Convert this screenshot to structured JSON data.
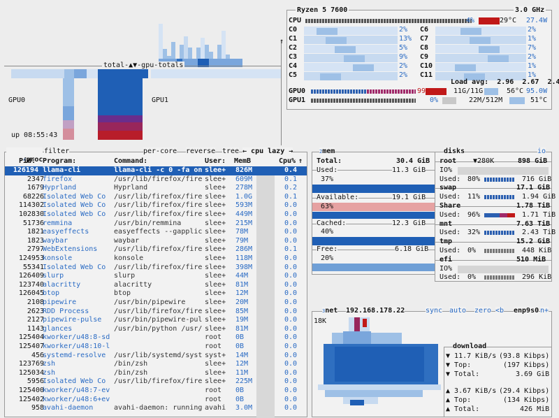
{
  "colors": {
    "accent": "#2a6bc4",
    "dark_blue": "#1f5fb5",
    "light_blue": "#9ec0e6",
    "red": "#c01818",
    "pink": "#e6a2a2"
  },
  "gpu_panel": {
    "title": "total-▲▼-gpu-totals",
    "gpu0": "GPU0",
    "gpu1": "GPU1",
    "uptime": "up 08:55:43"
  },
  "cpu": {
    "model": "Ryzen 5 7600",
    "freq": "3.0 GHz",
    "label": "CPU",
    "total_pct": "4%",
    "temp": "29°C",
    "power": "27.4W",
    "cores": [
      {
        "name": "C0",
        "pct": "2%"
      },
      {
        "name": "C1",
        "pct": "13%"
      },
      {
        "name": "C2",
        "pct": "5%"
      },
      {
        "name": "C3",
        "pct": "9%"
      },
      {
        "name": "C4",
        "pct": "2%"
      },
      {
        "name": "C5",
        "pct": "2%"
      },
      {
        "name": "C6",
        "pct": "2%"
      },
      {
        "name": "C7",
        "pct": "1%"
      },
      {
        "name": "C8",
        "pct": "7%"
      },
      {
        "name": "C9",
        "pct": "2%"
      },
      {
        "name": "C10",
        "pct": "1%"
      },
      {
        "name": "C11",
        "pct": "1%"
      }
    ],
    "load_avg": "Load avg:  2.96  2.67  2.44",
    "gpu0": {
      "label": "GPU0",
      "pct": "99%",
      "mem": "11G/11G",
      "temp": "56°C",
      "power": "95.0W"
    },
    "gpu1": {
      "label": "GPU1",
      "pct": "0%",
      "mem": "22M/512M",
      "temp": "51°C"
    }
  },
  "proc": {
    "hotkey": "4",
    "title": "proc",
    "filter": "filter",
    "per_core": "per-core",
    "reverse": "reverse",
    "tree": "tree",
    "sort": "cpu lazy",
    "headers": {
      "pid": "Pid:",
      "program": "Program:",
      "command": "Command:",
      "user": "User:",
      "mem": "MemB",
      "cpu": "Cpu%"
    },
    "rows": [
      {
        "pid": "126194",
        "prog": "llama-cli",
        "cmd": "llama-cli -c 0 -fa on",
        "user": "slee+",
        "mem": "826M",
        "cpu": "0.4"
      },
      {
        "pid": "2347",
        "prog": "firefox",
        "cmd": "/usr/lib/firefox/fire",
        "user": "slee+",
        "mem": "609M",
        "cpu": "0.1"
      },
      {
        "pid": "1679",
        "prog": "Hyprland",
        "cmd": "Hyprland",
        "user": "slee+",
        "mem": "278M",
        "cpu": "0.2"
      },
      {
        "pid": "68226",
        "prog": "Isolated Web Co",
        "cmd": "/usr/lib/firefox/fire",
        "user": "slee+",
        "mem": "1.0G",
        "cpu": "0.1"
      },
      {
        "pid": "114302",
        "prog": "Isolated Web Co",
        "cmd": "/usr/lib/firefox/fire",
        "user": "slee+",
        "mem": "593M",
        "cpu": "0.0"
      },
      {
        "pid": "102830",
        "prog": "Isolated Web Co",
        "cmd": "/usr/lib/firefox/fire",
        "user": "slee+",
        "mem": "449M",
        "cpu": "0.0"
      },
      {
        "pid": "51736",
        "prog": "remmina",
        "cmd": "/usr/bin/remmina",
        "user": "slee+",
        "mem": "215M",
        "cpu": "0.0"
      },
      {
        "pid": "1821",
        "prog": "easyeffects",
        "cmd": "easyeffects --gapplic",
        "user": "slee+",
        "mem": "78M",
        "cpu": "0.0"
      },
      {
        "pid": "1823",
        "prog": "waybar",
        "cmd": "waybar",
        "user": "slee+",
        "mem": "79M",
        "cpu": "0.0"
      },
      {
        "pid": "2797",
        "prog": "WebExtensions",
        "cmd": "/usr/lib/firefox/fire",
        "user": "slee+",
        "mem": "286M",
        "cpu": "0.1"
      },
      {
        "pid": "124953",
        "prog": "konsole",
        "cmd": "konsole",
        "user": "slee+",
        "mem": "118M",
        "cpu": "0.0"
      },
      {
        "pid": "55341",
        "prog": "Isolated Web Co",
        "cmd": "/usr/lib/firefox/fire",
        "user": "slee+",
        "mem": "398M",
        "cpu": "0.0"
      },
      {
        "pid": "126409",
        "prog": "slurp",
        "cmd": "slurp",
        "user": "slee+",
        "mem": "44M",
        "cpu": "0.0"
      },
      {
        "pid": "123740",
        "prog": "alacritty",
        "cmd": "alacritty",
        "user": "slee+",
        "mem": "81M",
        "cpu": "0.0"
      },
      {
        "pid": "126045",
        "prog": "btop",
        "cmd": "btop",
        "user": "slee+",
        "mem": "12M",
        "cpu": "0.0"
      },
      {
        "pid": "2108",
        "prog": "pipewire",
        "cmd": "/usr/bin/pipewire",
        "user": "slee+",
        "mem": "20M",
        "cpu": "0.0"
      },
      {
        "pid": "2623",
        "prog": "RDD Process",
        "cmd": "/usr/lib/firefox/fire",
        "user": "slee+",
        "mem": "85M",
        "cpu": "0.0"
      },
      {
        "pid": "2127",
        "prog": "pipewire-pulse",
        "cmd": "/usr/bin/pipewire-pul",
        "user": "slee+",
        "mem": "19M",
        "cpu": "0.0"
      },
      {
        "pid": "1143",
        "prog": "glances",
        "cmd": "/usr/bin/python /usr/",
        "user": "slee+",
        "mem": "81M",
        "cpu": "0.0"
      },
      {
        "pid": "125404",
        "prog": "kworker/u48:8-sd",
        "cmd": "",
        "user": "root",
        "mem": "0B",
        "cpu": "0.0"
      },
      {
        "pid": "125407",
        "prog": "kworker/u48:10-l",
        "cmd": "",
        "user": "root",
        "mem": "0B",
        "cpu": "0.0"
      },
      {
        "pid": "456",
        "prog": "systemd-resolve",
        "cmd": "/usr/lib/systemd/syst",
        "user": "syst+",
        "mem": "14M",
        "cpu": "0.0"
      },
      {
        "pid": "123769",
        "prog": "zsh",
        "cmd": "/bin/zsh",
        "user": "slee+",
        "mem": "12M",
        "cpu": "0.0"
      },
      {
        "pid": "125034",
        "prog": "zsh",
        "cmd": "/bin/zsh",
        "user": "slee+",
        "mem": "11M",
        "cpu": "0.0"
      },
      {
        "pid": "5956",
        "prog": "Isolated Web Co",
        "cmd": "/usr/lib/firefox/fire",
        "user": "slee+",
        "mem": "225M",
        "cpu": "0.0"
      },
      {
        "pid": "125400",
        "prog": "kworker/u48:7-ev",
        "cmd": "",
        "user": "root",
        "mem": "0B",
        "cpu": "0.0"
      },
      {
        "pid": "125402",
        "prog": "kworker/u48:6+ev",
        "cmd": "",
        "user": "root",
        "mem": "0B",
        "cpu": "0.0"
      },
      {
        "pid": "958",
        "prog": "avahi-daemon",
        "cmd": "avahi-daemon: running",
        "user": "avahi",
        "mem": "3.0M",
        "cpu": "0.0"
      }
    ]
  },
  "mem": {
    "hotkey": "2",
    "title": "mem",
    "total_label": "Total:",
    "total": "30.4 GiB",
    "used_label": "Used:",
    "used": "11.3 GiB",
    "used_pct": "37%",
    "used_frac": 0.37,
    "avail_label": "Available:",
    "avail": "19.1 GiB",
    "avail_pct": "63%",
    "avail_frac": 0.63,
    "cached_label": "Cached:",
    "cached": "12.3 GiB",
    "cached_pct": "40%",
    "cached_frac": 0.4,
    "free_label": "Free:",
    "free": "6.18 GiB",
    "free_pct": "20%",
    "free_frac": 0.2
  },
  "disks": {
    "title": "disks",
    "io": "io",
    "root": {
      "name": "root",
      "io": "▼280K",
      "size": "898 GiB",
      "io_label": "IO%",
      "used_label": "Used:",
      "used_pct": "80%",
      "used": "716 GiB"
    },
    "swap": {
      "name": "swap",
      "size": "17.1 GiB",
      "used_label": "Used:",
      "used_pct": "11%",
      "used": "1.94 GiB"
    },
    "share": {
      "name": "Share",
      "size": "1.78 TiB",
      "used_label": "Used:",
      "used_pct": "96%",
      "used": "1.71 TiB"
    },
    "mnt": {
      "name": "mnt",
      "size": "7.63 TiB",
      "used_label": "Used:",
      "used_pct": "32%",
      "used": "2.43 TiB"
    },
    "tmp": {
      "name": "tmp",
      "size": "15.2 GiB",
      "used_label": "Used:",
      "used_pct": "0%",
      "used": "448 KiB"
    },
    "efi": {
      "name": "efi",
      "size": "510 MiB",
      "io_label": "IO%",
      "used_label": "Used:",
      "used_pct": "0%",
      "used": "296 KiB"
    }
  },
  "net": {
    "hotkey": "3",
    "title": "net",
    "ip": "192.168.178.22",
    "sync": "sync",
    "auto": "auto",
    "zero": "zero",
    "b_key": "<b",
    "iface": "enp9s0",
    "n_key": "n+",
    "scale": "18K",
    "download": {
      "title": "download",
      "rate": "11.7 KiB/s",
      "rate_bits": "(93.8 Kibps)",
      "top_label": "Top:",
      "top": "(197 Kibps)",
      "total_label": "Total:",
      "total": "3.69 GiB"
    },
    "upload": {
      "rate": "3.67 KiB/s",
      "rate_bits": "(29.4 Kibps)",
      "top_label": "Top:",
      "top": "(134 Kibps)",
      "total_label": "Total:",
      "total": "426 MiB"
    }
  }
}
